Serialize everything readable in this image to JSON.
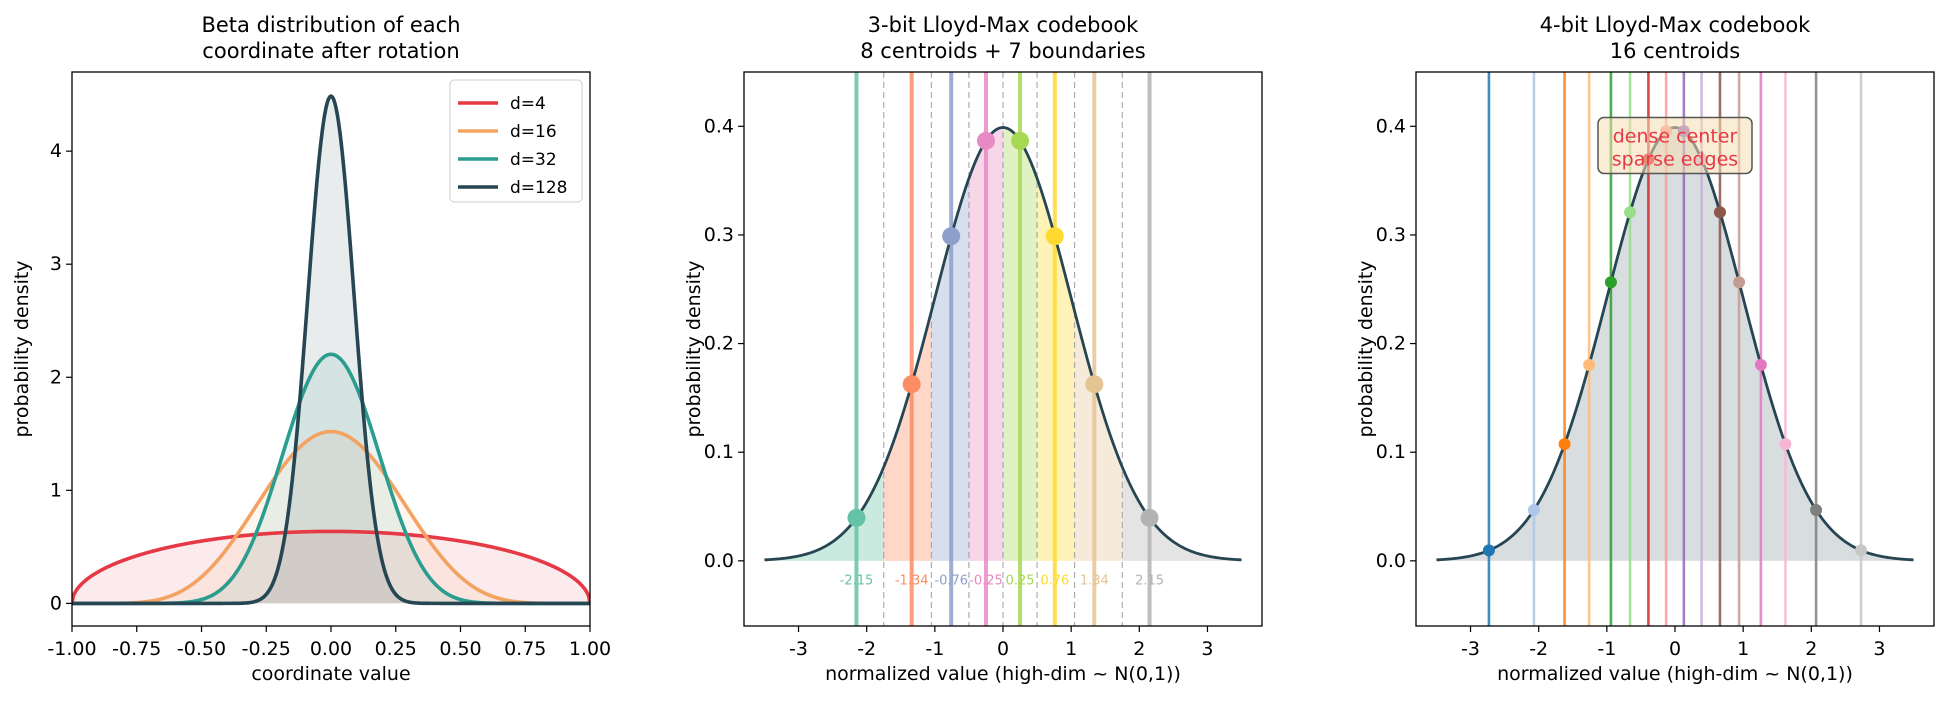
{
  "chart_data": [
    {
      "type": "line",
      "title": "Beta distribution of each\ncoordinate after rotation",
      "xlabel": "coordinate value",
      "ylabel": "probability density",
      "xlim": [
        -1.0,
        1.0
      ],
      "ylim": [
        -0.2,
        4.7
      ],
      "xticks": [
        -1.0,
        -0.75,
        -0.5,
        -0.25,
        0.0,
        0.25,
        0.5,
        0.75,
        1.0
      ],
      "xtick_labels": [
        "-1.00",
        "-0.75",
        "-0.50",
        "-0.25",
        "0.00",
        "0.25",
        "0.50",
        "0.75",
        "1.00"
      ],
      "yticks": [
        0,
        1,
        2,
        3,
        4
      ],
      "ytick_labels": [
        "0",
        "1",
        "2",
        "3",
        "4"
      ],
      "legend_position": "top-right",
      "series": [
        {
          "name": "d=4",
          "d": 4,
          "peak": 0.637,
          "color": "#e63946"
        },
        {
          "name": "d=16",
          "d": 16,
          "peak": 1.51,
          "color": "#f4a261"
        },
        {
          "name": "d=32",
          "d": 32,
          "peak": 2.2,
          "color": "#2a9d8f"
        },
        {
          "name": "d=128",
          "d": 128,
          "peak": 4.5,
          "color": "#264653"
        }
      ]
    },
    {
      "type": "line",
      "title": "3-bit Lloyd-Max codebook\n8 centroids + 7 boundaries",
      "xlabel": "normalized value (high-dim ~ N(0,1))",
      "ylabel": "probability density",
      "xlim": [
        -3.8,
        3.8
      ],
      "ylim": [
        -0.06,
        0.45
      ],
      "xticks": [
        -3,
        -2,
        -1,
        0,
        1,
        2,
        3
      ],
      "xtick_labels": [
        "-3",
        "-2",
        "-1",
        "0",
        "1",
        "2",
        "3"
      ],
      "yticks": [
        0.0,
        0.1,
        0.2,
        0.3,
        0.4
      ],
      "ytick_labels": [
        "0.0",
        "0.1",
        "0.2",
        "0.3",
        "0.4"
      ],
      "curve_range": [
        -3.5,
        3.5
      ],
      "centroids": [
        -2.15,
        -1.34,
        -0.76,
        -0.25,
        0.25,
        0.76,
        1.34,
        2.15
      ],
      "centroid_labels": [
        "-2.15",
        "-1.34",
        "-0.76",
        "-0.25",
        "0.25",
        "0.76",
        "1.34",
        "2.15"
      ],
      "boundaries": [
        -1.75,
        -1.05,
        -0.5,
        0.0,
        0.5,
        1.05,
        1.75
      ],
      "colors": [
        "#66c2a5",
        "#fc8d62",
        "#8da0cb",
        "#e78ac3",
        "#a6d854",
        "#ffd92f",
        "#e5c494",
        "#b3b3b3"
      ]
    },
    {
      "type": "line",
      "title": "4-bit Lloyd-Max codebook\n16 centroids",
      "xlabel": "normalized value (high-dim ~ N(0,1))",
      "ylabel": "probability density",
      "xlim": [
        -3.8,
        3.8
      ],
      "ylim": [
        -0.06,
        0.45
      ],
      "xticks": [
        -3,
        -2,
        -1,
        0,
        1,
        2,
        3
      ],
      "xtick_labels": [
        "-3",
        "-2",
        "-1",
        "0",
        "1",
        "2",
        "3"
      ],
      "yticks": [
        0.0,
        0.1,
        0.2,
        0.3,
        0.4
      ],
      "ytick_labels": [
        "0.0",
        "0.1",
        "0.2",
        "0.3",
        "0.4"
      ],
      "curve_range": [
        -3.5,
        3.5
      ],
      "centroids": [
        -2.73,
        -2.07,
        -1.62,
        -1.26,
        -0.94,
        -0.66,
        -0.39,
        -0.13,
        0.13,
        0.39,
        0.66,
        0.94,
        1.26,
        1.62,
        2.07,
        2.73
      ],
      "colors": [
        "#1f77b4",
        "#aec7e8",
        "#ff7f0e",
        "#ffbb78",
        "#2ca02c",
        "#98df8a",
        "#d62728",
        "#ff9896",
        "#9467bd",
        "#c5b0d5",
        "#8c564b",
        "#c49c94",
        "#e377c2",
        "#f7b6d2",
        "#7f7f7f",
        "#c7c7c7",
        "#bcbd22",
        "#dbdb8d",
        "#17becf",
        "#9edae5"
      ],
      "annotation": "dense center\nsparse edges",
      "annotation_color": "#e63946"
    }
  ]
}
